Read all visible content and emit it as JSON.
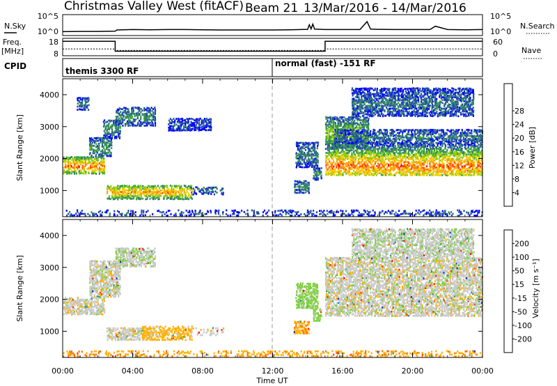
{
  "header": {
    "station": "Christmas Valley West (fitACF)",
    "beam": "Beam 21",
    "date_range": "13/Mar/2016 - 14/Mar/2016"
  },
  "chart_data": [
    {
      "type": "line",
      "name": "noise",
      "left_label": "N.Sky",
      "right_label": "N.Search",
      "left_ticks": [
        "10^5",
        "10^0"
      ],
      "right_ticks": [
        "10^5",
        "10^0"
      ],
      "x": [
        0,
        1,
        2,
        3,
        3.1,
        4,
        5,
        6,
        7,
        8,
        9,
        10,
        11,
        12,
        13,
        14,
        14.1,
        14.2,
        14.3,
        14.4,
        15,
        16,
        17,
        17.4,
        17.6,
        18,
        19,
        20,
        21,
        21.3,
        22,
        23,
        24
      ],
      "values": [
        1.2,
        1.3,
        1.3,
        1.4,
        2.0,
        2.2,
        2.1,
        2.2,
        2.2,
        2.1,
        2.0,
        2.0,
        2.0,
        2.0,
        2.1,
        2.3,
        4.5,
        2.5,
        4.8,
        2.4,
        2.2,
        2.2,
        2.2,
        6.0,
        2.4,
        2.3,
        2.2,
        2.2,
        2.2,
        3.8,
        2.2,
        2.1,
        2.2
      ]
    },
    {
      "type": "line",
      "name": "frequency",
      "left_label": "Freq.",
      "left_unit": "[MHz]",
      "right_label": "Nave",
      "left_ticks": [
        "18",
        "8"
      ],
      "right_ticks": [
        "60",
        "0"
      ],
      "ylim": [
        8,
        18
      ],
      "x": [
        0,
        3,
        3,
        15,
        15,
        24
      ],
      "values": [
        17,
        17,
        10.5,
        10.5,
        17,
        17
      ],
      "nave_x": [
        0,
        3,
        3,
        15,
        15,
        24
      ],
      "nave_values": [
        12,
        12,
        11,
        11,
        12,
        12
      ]
    },
    {
      "type": "heatmap",
      "name": "cpid",
      "label": "CPID",
      "segments": [
        {
          "start": 0,
          "end": 12,
          "label": "themis 3300 RF"
        },
        {
          "start": 12,
          "end": 24,
          "label": "normal (fast) -151 RF"
        }
      ]
    },
    {
      "type": "heatmap",
      "name": "power",
      "ylabel": "Slant Range [km]",
      "ylim": [
        180,
        4500
      ],
      "yticks": [
        "1000",
        "2000",
        "3000",
        "4000"
      ],
      "colorbar_label": "Power [dB]",
      "colorbar_ticks": [
        "4",
        "8",
        "12",
        "16",
        "20",
        "24",
        "28"
      ],
      "colors": [
        "#0000ff",
        "#1e4ba8",
        "#2f7f6a",
        "#3aa23a",
        "#8ccc00",
        "#f0d000",
        "#ffa000",
        "#ff5000",
        "#ff0000"
      ],
      "vmin": 0,
      "vmax": 32,
      "regions": [
        {
          "t0": 0.0,
          "t1": 2.4,
          "r0": 1500,
          "r1": 2050,
          "core": 1750,
          "p": 26
        },
        {
          "t0": 1.5,
          "t1": 2.8,
          "r0": 2050,
          "r1": 2650,
          "core": 2300,
          "p": 12
        },
        {
          "t0": 2.3,
          "t1": 3.3,
          "r0": 2600,
          "r1": 3200,
          "core": 2950,
          "p": 11
        },
        {
          "t0": 3.0,
          "t1": 5.3,
          "r0": 3000,
          "r1": 3600,
          "core": 3300,
          "p": 9
        },
        {
          "t0": 0.8,
          "t1": 1.5,
          "r0": 3500,
          "r1": 3900,
          "core": 3700,
          "p": 9
        },
        {
          "t0": 6.0,
          "t1": 8.5,
          "r0": 2850,
          "r1": 3250,
          "core": 3050,
          "p": 6
        },
        {
          "t0": 2.5,
          "t1": 7.4,
          "r0": 700,
          "r1": 1150,
          "core": 930,
          "p": 24
        },
        {
          "t0": 7.3,
          "t1": 9.2,
          "r0": 850,
          "r1": 1100,
          "core": 980,
          "p": 8
        },
        {
          "t0": 13.2,
          "t1": 14.1,
          "r0": 900,
          "r1": 1300,
          "core": 1100,
          "p": 10
        },
        {
          "t0": 14.3,
          "t1": 14.8,
          "r0": 1300,
          "r1": 1700,
          "core": 1500,
          "p": 12
        },
        {
          "t0": 13.3,
          "t1": 14.6,
          "r0": 1700,
          "r1": 2500,
          "core": 2100,
          "p": 9
        },
        {
          "t0": 15.0,
          "t1": 24.0,
          "r0": 1450,
          "r1": 2450,
          "core": 1750,
          "p": 26
        },
        {
          "t0": 15.0,
          "t1": 17.5,
          "r0": 2300,
          "r1": 3300,
          "core": 2750,
          "p": 16
        },
        {
          "t0": 15.5,
          "t1": 24.0,
          "r0": 2450,
          "r1": 2900,
          "core": 2650,
          "p": 8
        },
        {
          "t0": 16.5,
          "t1": 23.5,
          "r0": 3300,
          "r1": 4200,
          "core": 3700,
          "p": 8
        },
        {
          "t0": 0.0,
          "t1": 24.0,
          "r0": 180,
          "r1": 380,
          "core": 260,
          "p": 6
        }
      ]
    },
    {
      "type": "heatmap",
      "name": "velocity",
      "ylabel": "Slant Range [km]",
      "ylim": [
        180,
        4500
      ],
      "yticks": [
        "1000",
        "2000",
        "3000",
        "4000"
      ],
      "colorbar_label": "Velocity [m s⁻¹]",
      "colorbar_ticks": [
        "200",
        "100",
        "50",
        "15",
        "-15",
        "-50",
        "-100",
        "-200"
      ],
      "colors": [
        "#1030c0",
        "#2f8f8f",
        "#3aa23a",
        "#80d040",
        "#c8c8c8",
        "#ffb000",
        "#ff7000",
        "#ff3000",
        "#ff0000"
      ],
      "xlabel": "Time UT",
      "xticks": [
        "00:00",
        "04:00",
        "08:00",
        "12:00",
        "16:00",
        "20:00",
        "00:00"
      ],
      "xlim": [
        0,
        24
      ],
      "regions": [
        {
          "t0": 0.0,
          "t1": 2.4,
          "r0": 1500,
          "r1": 2050,
          "v": 0
        },
        {
          "t0": 1.5,
          "t1": 3.3,
          "r0": 2050,
          "r1": 3200,
          "v": 0
        },
        {
          "t0": 3.0,
          "t1": 5.3,
          "r0": 3000,
          "r1": 3600,
          "v": 10
        },
        {
          "t0": 2.5,
          "t1": 4.5,
          "r0": 700,
          "r1": 1100,
          "v": 0
        },
        {
          "t0": 4.5,
          "t1": 7.4,
          "r0": 700,
          "r1": 1150,
          "v": -30
        },
        {
          "t0": 7.3,
          "t1": 9.2,
          "r0": 850,
          "r1": 1100,
          "v": 0
        },
        {
          "t0": 13.2,
          "t1": 14.1,
          "r0": 900,
          "r1": 1300,
          "v": -40
        },
        {
          "t0": 14.3,
          "t1": 14.8,
          "r0": 1300,
          "r1": 1700,
          "v": 30
        },
        {
          "t0": 13.3,
          "t1": 14.6,
          "r0": 1700,
          "r1": 2500,
          "v": 30
        },
        {
          "t0": 15.0,
          "t1": 24.0,
          "r0": 1450,
          "r1": 2450,
          "v": 0
        },
        {
          "t0": 15.0,
          "t1": 24.0,
          "r0": 2450,
          "r1": 3300,
          "v": 0
        },
        {
          "t0": 16.5,
          "t1": 23.5,
          "r0": 3300,
          "r1": 4200,
          "v": 5
        },
        {
          "t0": 0.0,
          "t1": 24.0,
          "r0": 180,
          "r1": 380,
          "v": -40
        }
      ]
    }
  ]
}
